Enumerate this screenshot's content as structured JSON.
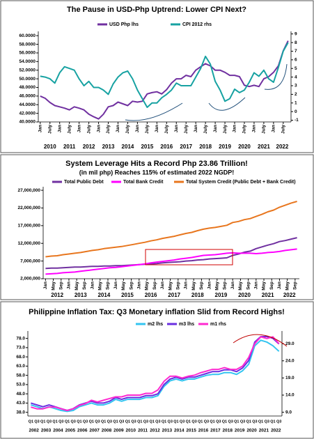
{
  "chart_data": [
    {
      "type": "line",
      "title": "The Pause in USD-Php Uptrend: Lower CPI Next?",
      "x": [
        2010,
        2010.25,
        2010.5,
        2010.75,
        2011,
        2011.25,
        2011.5,
        2011.75,
        2012,
        2012.25,
        2012.5,
        2012.75,
        2013,
        2013.25,
        2013.5,
        2013.75,
        2014,
        2014.25,
        2014.5,
        2014.75,
        2015,
        2015.25,
        2015.5,
        2015.75,
        2016,
        2016.25,
        2016.5,
        2016.75,
        2017,
        2017.25,
        2017.5,
        2017.75,
        2018,
        2018.25,
        2018.5,
        2018.75,
        2019,
        2019.25,
        2019.5,
        2019.75,
        2020,
        2020.25,
        2020.5,
        2020.75,
        2021,
        2021.25,
        2021.5,
        2021.75,
        2022,
        2022.25,
        2022.5,
        2022.75
      ],
      "series": [
        {
          "name": "USD Php lhs",
          "color": "#7030a0",
          "values": [
            46.0,
            45.5,
            44.5,
            43.8,
            43.5,
            43.2,
            42.8,
            43.5,
            43.2,
            42.8,
            41.8,
            41.2,
            40.7,
            41.8,
            43.5,
            43.8,
            44.6,
            44.2,
            43.8,
            44.8,
            44.6,
            44.8,
            46.5,
            46.8,
            47.0,
            46.5,
            47.5,
            49.0,
            50.0,
            50.0,
            50.8,
            50.5,
            52.0,
            52.8,
            53.5,
            53.0,
            52.0,
            52.0,
            51.5,
            50.8,
            50.8,
            50.5,
            48.5,
            48.2,
            48.5,
            48.2,
            50.0,
            50.5,
            51.5,
            53.0,
            56.5,
            58.8
          ]
        },
        {
          "name": "CPI 2012 rhs",
          "color": "#17a2a2",
          "axis": "y2",
          "values": [
            4.1,
            4.0,
            3.8,
            3.3,
            4.5,
            5.2,
            5.0,
            4.8,
            3.8,
            3.0,
            3.5,
            2.8,
            2.8,
            2.5,
            2.0,
            3.2,
            4.0,
            4.5,
            4.7,
            3.8,
            2.5,
            1.5,
            0.5,
            1.0,
            1.0,
            1.6,
            2.0,
            2.5,
            3.3,
            3.0,
            3.0,
            3.0,
            4.0,
            5.0,
            6.4,
            5.5,
            3.5,
            2.5,
            1.2,
            1.5,
            2.6,
            2.2,
            2.5,
            3.4,
            4.5,
            4.1,
            4.8,
            3.8,
            3.4,
            5.1,
            7.0,
            8.0
          ]
        }
      ],
      "xlim": [
        2009.9,
        2022.9
      ],
      "xticks": [
        {
          "value": 2010,
          "label": "Jan"
        },
        {
          "value": 2010.5,
          "label": "July"
        },
        {
          "value": 2011,
          "label": "Jan"
        },
        {
          "value": 2011.5,
          "label": "July"
        },
        {
          "value": 2012,
          "label": "Jan"
        },
        {
          "value": 2012.5,
          "label": "July"
        },
        {
          "value": 2013,
          "label": "Jan"
        },
        {
          "value": 2013.5,
          "label": "July"
        },
        {
          "value": 2014,
          "label": "Jan"
        },
        {
          "value": 2014.5,
          "label": "July"
        },
        {
          "value": 2015,
          "label": "Jan"
        },
        {
          "value": 2015.5,
          "label": "July"
        },
        {
          "value": 2016,
          "label": "Jan"
        },
        {
          "value": 2016.5,
          "label": "July"
        },
        {
          "value": 2017,
          "label": "Jan"
        },
        {
          "value": 2017.5,
          "label": "July"
        },
        {
          "value": 2018,
          "label": "Jan"
        },
        {
          "value": 2018.5,
          "label": "July"
        },
        {
          "value": 2019,
          "label": "Jan"
        },
        {
          "value": 2019.5,
          "label": "July"
        },
        {
          "value": 2020,
          "label": "Jan"
        },
        {
          "value": 2020.5,
          "label": "July"
        },
        {
          "value": 2021,
          "label": "Jan"
        },
        {
          "value": 2021.5,
          "label": "July"
        },
        {
          "value": 2022,
          "label": "Jan"
        },
        {
          "value": 2022.5,
          "label": "July"
        }
      ],
      "year_ticks": [
        2010,
        2011,
        2012,
        2013,
        2014,
        2015,
        2016,
        2017,
        2018,
        2019,
        2020,
        2021,
        2022
      ],
      "ylim": [
        40,
        61
      ],
      "yticks": [
        {
          "value": 40,
          "label": "40.0000"
        },
        {
          "value": 42,
          "label": "42.0000"
        },
        {
          "value": 44,
          "label": "44.0000"
        },
        {
          "value": 46,
          "label": "46.0000"
        },
        {
          "value": 48,
          "label": "48.0000"
        },
        {
          "value": 50,
          "label": "50.0000"
        },
        {
          "value": 52,
          "label": "52.0000"
        },
        {
          "value": 54,
          "label": "54.0000"
        },
        {
          "value": 56,
          "label": "56.0000"
        },
        {
          "value": 58,
          "label": "58.0000"
        },
        {
          "value": 60,
          "label": "60.0000"
        }
      ],
      "y2lim": [
        -1.2,
        9.3
      ],
      "y2ticks": [
        -1,
        0,
        1,
        2,
        3,
        4,
        5,
        6,
        7,
        8,
        9
      ]
    },
    {
      "type": "line",
      "title": "System Leverage Hits a Record Php 23.86 Trillion!",
      "subtitle": "(in mil php) Reaches 115% of estimated 2022 NGDP!",
      "x": [
        2012,
        2012.25,
        2012.5,
        2012.75,
        2013,
        2013.25,
        2013.5,
        2013.75,
        2014,
        2014.25,
        2014.5,
        2014.75,
        2015,
        2015.25,
        2015.5,
        2015.75,
        2016,
        2016.25,
        2016.5,
        2016.75,
        2017,
        2017.25,
        2017.5,
        2017.75,
        2018,
        2018.25,
        2018.5,
        2018.75,
        2019,
        2019.25,
        2019.5,
        2019.75,
        2020,
        2020.25,
        2020.5,
        2020.75,
        2021,
        2021.25,
        2021.5,
        2021.75,
        2022,
        2022.25,
        2022.5,
        2022.75
      ],
      "series": [
        {
          "name": "Total Public Debt",
          "color": "#7030a0",
          "values": [
            4900000,
            5000000,
            5000000,
            5100000,
            5200000,
            5300000,
            5300000,
            5400000,
            5500000,
            5500000,
            5600000,
            5600000,
            5700000,
            5700000,
            5800000,
            5900000,
            6000000,
            6100000,
            6200000,
            6300000,
            6500000,
            6600000,
            6700000,
            6800000,
            7000000,
            7100000,
            7300000,
            7400000,
            7600000,
            7700000,
            7800000,
            7900000,
            8600000,
            9000000,
            9500000,
            9800000,
            10500000,
            11000000,
            11500000,
            11900000,
            12500000,
            12800000,
            13200000,
            13600000
          ]
        },
        {
          "name": "Total Bank Credit",
          "color": "#ff00ff",
          "values": [
            3300000,
            3400000,
            3500000,
            3700000,
            3800000,
            3900000,
            4100000,
            4300000,
            4500000,
            4700000,
            4900000,
            5100000,
            5200000,
            5400000,
            5600000,
            5800000,
            6000000,
            6200000,
            6500000,
            6700000,
            6900000,
            7100000,
            7300000,
            7600000,
            7800000,
            8000000,
            8300000,
            8600000,
            8700000,
            8800000,
            9000000,
            9200000,
            9300000,
            9200000,
            9200000,
            9200000,
            9100000,
            9200000,
            9400000,
            9500000,
            9700000,
            10000000,
            10200000,
            10400000
          ]
        },
        {
          "name": "Total System Credit (Public Debt + Bank Credit)",
          "color": "#e8761e",
          "values": [
            8200000,
            8400000,
            8500000,
            8800000,
            9000000,
            9200000,
            9400000,
            9700000,
            10000000,
            10200000,
            10500000,
            10700000,
            10900000,
            11100000,
            11400000,
            11700000,
            12000000,
            12300000,
            12700000,
            13000000,
            13400000,
            13700000,
            14000000,
            14400000,
            14800000,
            15100000,
            15600000,
            16000000,
            16300000,
            16500000,
            16800000,
            17100000,
            17900000,
            18200000,
            18700000,
            19000000,
            19600000,
            20200000,
            20900000,
            21400000,
            22200000,
            22800000,
            23400000,
            23860000
          ]
        }
      ],
      "xlim": [
        2011.9,
        2022.85
      ],
      "xticks": [
        {
          "value": 2012,
          "label": "Jan"
        },
        {
          "value": 2012.333,
          "label": "May"
        },
        {
          "value": 2012.667,
          "label": "Sep"
        },
        {
          "value": 2013,
          "label": "Jan"
        },
        {
          "value": 2013.333,
          "label": "May"
        },
        {
          "value": 2013.667,
          "label": "Sep"
        },
        {
          "value": 2014,
          "label": "Jan"
        },
        {
          "value": 2014.333,
          "label": "May"
        },
        {
          "value": 2014.667,
          "label": "Sep"
        },
        {
          "value": 2015,
          "label": "Jan"
        },
        {
          "value": 2015.333,
          "label": "May"
        },
        {
          "value": 2015.667,
          "label": "Sep"
        },
        {
          "value": 2016,
          "label": "Jan"
        },
        {
          "value": 2016.333,
          "label": "May"
        },
        {
          "value": 2016.667,
          "label": "Sep"
        },
        {
          "value": 2017,
          "label": "Jan"
        },
        {
          "value": 2017.333,
          "label": "May"
        },
        {
          "value": 2017.667,
          "label": "Sep"
        },
        {
          "value": 2018,
          "label": "Jan"
        },
        {
          "value": 2018.333,
          "label": "May"
        },
        {
          "value": 2018.667,
          "label": "Sep"
        },
        {
          "value": 2019,
          "label": "Jan"
        },
        {
          "value": 2019.333,
          "label": "May"
        },
        {
          "value": 2019.667,
          "label": "Sep"
        },
        {
          "value": 2020,
          "label": "Jan"
        },
        {
          "value": 2020.333,
          "label": "May"
        },
        {
          "value": 2020.667,
          "label": "Sep"
        },
        {
          "value": 2021,
          "label": "Jan"
        },
        {
          "value": 2021.333,
          "label": "May"
        },
        {
          "value": 2021.667,
          "label": "Sep"
        },
        {
          "value": 2022,
          "label": "Jan"
        },
        {
          "value": 2022.333,
          "label": "May"
        },
        {
          "value": 2022.667,
          "label": "Sep"
        }
      ],
      "year_ticks": [
        2012,
        2013,
        2014,
        2015,
        2016,
        2017,
        2018,
        2019,
        2020,
        2021,
        2022
      ],
      "ylim": [
        2000000,
        28000000
      ],
      "yticks": [
        {
          "value": 2000000,
          "label": "2,000,000"
        },
        {
          "value": 7000000,
          "label": "7,000,000"
        },
        {
          "value": 12000000,
          "label": "12,000,000"
        },
        {
          "value": 17000000,
          "label": "17,000,000"
        },
        {
          "value": 22000000,
          "label": "22,000,000"
        },
        {
          "value": 27000000,
          "label": "27,000,000"
        }
      ]
    },
    {
      "type": "line",
      "title": "Philippine Inflation Tax: Q3 Monetary inflation Slid from Record Highs!",
      "categories": [
        "Q1",
        "Q3",
        "Q1",
        "Q3",
        "Q1",
        "Q3",
        "Q1",
        "Q3",
        "Q1",
        "Q3",
        "Q1",
        "Q3",
        "Q1",
        "Q3",
        "Q1",
        "Q3",
        "Q1",
        "Q3",
        "Q1",
        "Q3",
        "Q1",
        "Q3",
        "Q1",
        "Q3",
        "Q1",
        "Q3",
        "Q1",
        "Q3",
        "Q1",
        "Q3",
        "Q1",
        "Q3",
        "Q1",
        "Q3",
        "Q1",
        "Q3",
        "Q1",
        "Q3",
        "Q1",
        "Q3",
        "Q1",
        "Q3"
      ],
      "years": [
        "2002",
        "2003",
        "2004",
        "2005",
        "2006",
        "2007",
        "2008",
        "2009",
        "2010",
        "2011",
        "2012",
        "2013",
        "2014",
        "2015",
        "2016",
        "2017",
        "2018",
        "2019",
        "2020",
        "2021",
        "2022"
      ],
      "series": [
        {
          "name": "m2 lhs",
          "color": "#33c4f0",
          "values": [
            42,
            41,
            40,
            41,
            40,
            39,
            38.5,
            39,
            41,
            42,
            43,
            42,
            42,
            43,
            45,
            44,
            45,
            45,
            45,
            46,
            46,
            47,
            52,
            55,
            56,
            55,
            56,
            56,
            57,
            58,
            58.5,
            58.5,
            59.5,
            59.5,
            58.5,
            60.5,
            64,
            74,
            77,
            76,
            74,
            71
          ]
        },
        {
          "name": "m3 lhs",
          "color": "#6a2ee0",
          "values": [
            43,
            42,
            41,
            42,
            41,
            40,
            39,
            40,
            42,
            43,
            44,
            43,
            43,
            44,
            46,
            45,
            46,
            46,
            46,
            47,
            47,
            48,
            53,
            56,
            57,
            56,
            57,
            57,
            58,
            59,
            60,
            60,
            61,
            61,
            60,
            62,
            66,
            76,
            79,
            79,
            78,
            75
          ]
        },
        {
          "name": "m1 rhs",
          "color": "#ff2ad0",
          "axis": "y2",
          "values": [
            10.5,
            10,
            10,
            10.5,
            10.5,
            10,
            9.5,
            10,
            11,
            11.5,
            12.5,
            12,
            12.5,
            13,
            13.5,
            13.5,
            14,
            14,
            14,
            14.5,
            14.5,
            15.5,
            18,
            19.5,
            19.5,
            19,
            19.5,
            19.8,
            20.5,
            21,
            21.5,
            21.5,
            22,
            21.5,
            21.5,
            22.5,
            25,
            29,
            31,
            30.5,
            31,
            29
          ]
        }
      ],
      "ylim": [
        36,
        82
      ],
      "yticks": [
        {
          "value": 38,
          "label": "38.0"
        },
        {
          "value": 43,
          "label": "43.0"
        },
        {
          "value": 48,
          "label": "48.0"
        },
        {
          "value": 53,
          "label": "53.0"
        },
        {
          "value": 58,
          "label": "58.0"
        },
        {
          "value": 63,
          "label": "63.0"
        },
        {
          "value": 68,
          "label": "68.0"
        },
        {
          "value": 73,
          "label": "73.0"
        },
        {
          "value": 78,
          "label": "78.0"
        }
      ],
      "y2lim": [
        7.9,
        32.7
      ],
      "y2ticks": [
        {
          "value": 9,
          "label": "9.0"
        },
        {
          "value": 14,
          "label": "14.0"
        },
        {
          "value": 19,
          "label": "19.0"
        },
        {
          "value": 24,
          "label": "24.0"
        },
        {
          "value": 29,
          "label": "29.0"
        }
      ]
    }
  ]
}
